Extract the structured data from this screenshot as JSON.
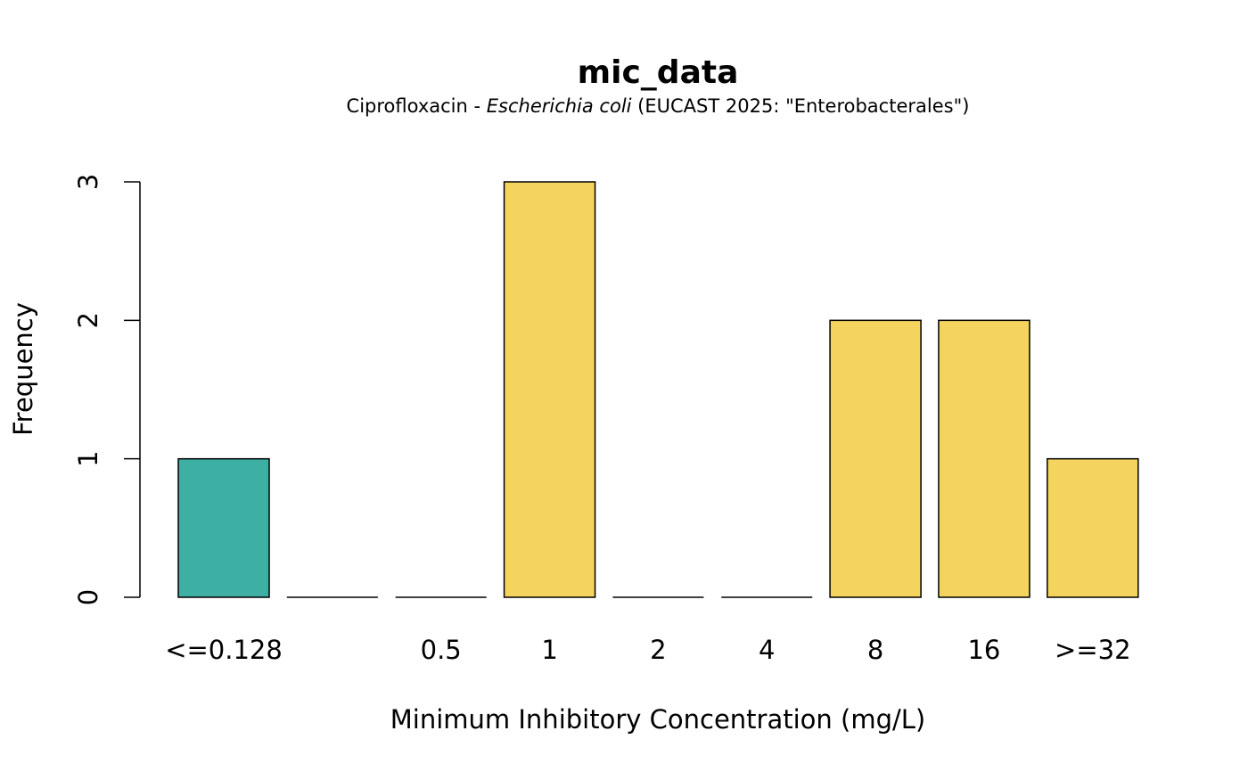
{
  "chart_data": {
    "type": "bar",
    "title": "mic_data",
    "subtitle": {
      "prefix": "Ciprofloxacin - ",
      "organism": "Escherichia coli",
      "suffix": " (EUCAST 2025: \"Enterobacterales\")"
    },
    "xlabel": "Minimum Inhibitory Concentration (mg/L)",
    "ylabel": "Frequency",
    "categories": [
      "<=0.128",
      "",
      "0.5",
      "1",
      "2",
      "4",
      "8",
      "16",
      ">=32"
    ],
    "values": [
      1,
      0,
      0,
      3,
      0,
      0,
      2,
      2,
      1
    ],
    "bar_colors": [
      "#3DAFA3",
      "#F4D45E",
      "#F4D45E",
      "#F4D45E",
      "#F4D45E",
      "#F4D45E",
      "#F4D45E",
      "#F4D45E",
      "#F4D45E"
    ],
    "ylim": [
      0,
      3
    ],
    "yticks": [
      0,
      1,
      2,
      3
    ],
    "grid": false,
    "legend": "none"
  }
}
